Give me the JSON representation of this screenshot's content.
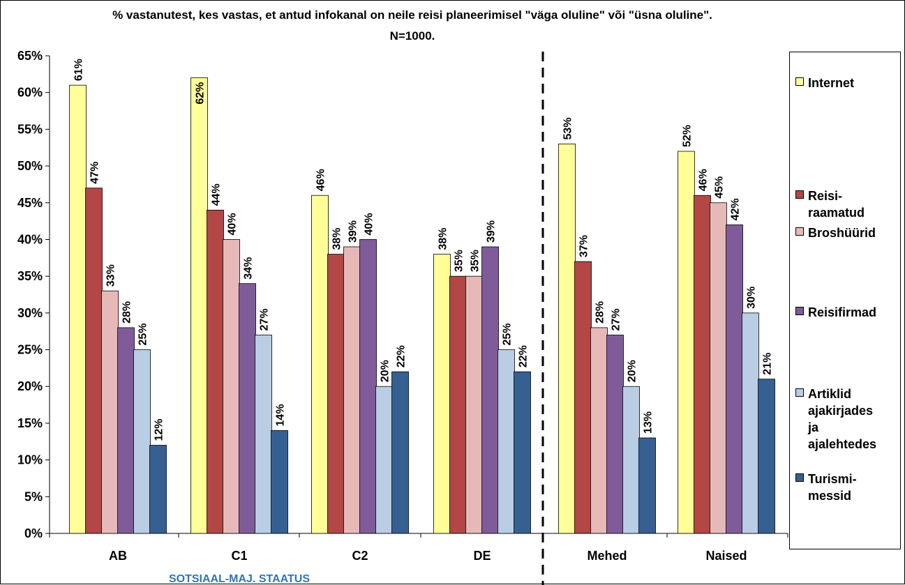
{
  "chart_data": {
    "type": "bar",
    "title": "% vastanutest, kes vastas, et antud infokanal on neile reisi planeerimisel \"väga oluline\" või \"üsna oluline\". N=1000.",
    "categories": [
      "AB",
      "C1",
      "C2",
      "DE",
      "Mehed",
      "Naised"
    ],
    "group_label": "SOTSIAAL-MAJ. STAATUS",
    "y_ticks": [
      "0%",
      "5%",
      "10%",
      "15%",
      "20%",
      "25%",
      "30%",
      "35%",
      "40%",
      "45%",
      "50%",
      "55%",
      "60%",
      "65%"
    ],
    "ylim": [
      0,
      65
    ],
    "series": [
      {
        "name": "Internet",
        "color": "#ffff99",
        "values": [
          61,
          62,
          46,
          38,
          53,
          52
        ],
        "labels": [
          "61%",
          "62%",
          "46%",
          "38%",
          "53%",
          "52%"
        ]
      },
      {
        "name": "Reisi-raamatud",
        "legend_lines": [
          "Reisi-",
          "raamatud"
        ],
        "color": "#b24745",
        "values": [
          47,
          44,
          38,
          35,
          37,
          46
        ],
        "labels": [
          "47%",
          "44%",
          "38%",
          "35%",
          "37%",
          "46%"
        ]
      },
      {
        "name": "Broshüürid",
        "legend_lines": [
          "Broshüürid"
        ],
        "color": "#e6b9b8",
        "values": [
          33,
          40,
          39,
          35,
          28,
          45
        ],
        "labels": [
          "33%",
          "40%",
          "39%",
          "35%",
          "28%",
          "45%"
        ]
      },
      {
        "name": "Reisifirmad",
        "legend_lines": [
          "Reisifirmad"
        ],
        "color": "#7f5c99",
        "values": [
          28,
          34,
          40,
          39,
          27,
          42
        ],
        "labels": [
          "28%",
          "34%",
          "40%",
          "39%",
          "27%",
          "42%"
        ]
      },
      {
        "name": "Artiklid ajakirjades ja ajalehtedes",
        "legend_lines": [
          "Artiklid",
          "ajakirjades",
          "ja",
          "ajalehtedes"
        ],
        "color": "#b9cde5",
        "values": [
          25,
          27,
          20,
          25,
          20,
          30
        ],
        "labels": [
          "25%",
          "27%",
          "20%",
          "25%",
          "20%",
          "30%"
        ]
      },
      {
        "name": "Turismi-messid",
        "legend_lines": [
          "Turismi-",
          "messid"
        ],
        "color": "#366092",
        "values": [
          12,
          14,
          22,
          22,
          13,
          21
        ],
        "labels": [
          "12%",
          "14%",
          "22%",
          "22%",
          "13%",
          "21%"
        ]
      }
    ],
    "divider_after_category": "DE",
    "legend_position": "right",
    "grid": false
  }
}
